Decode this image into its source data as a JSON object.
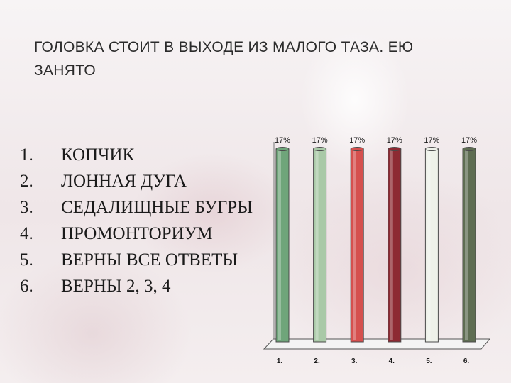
{
  "slide": {
    "title": "ГОЛОВКА СТОИТ В ВЫХОДЕ ИЗ МАЛОГО ТАЗА. ЕЮ ЗАНЯТО"
  },
  "answers": [
    {
      "num": "1.",
      "text": "КОПЧИК"
    },
    {
      "num": "2.",
      "text": "ЛОННАЯ ДУГА"
    },
    {
      "num": "3.",
      "text": "СЕДАЛИЩНЫЕ БУГРЫ"
    },
    {
      "num": "4.",
      "text": "ПРОМОНТОРИУМ"
    },
    {
      "num": "5.",
      "text": "ВЕРНЫ ВСЕ ОТВЕТЫ"
    },
    {
      "num": "6.",
      "text": "ВЕРНЫ 2, 3, 4"
    }
  ],
  "chart_data": {
    "type": "bar",
    "categories": [
      "1.",
      "2.",
      "3.",
      "4.",
      "5.",
      "6."
    ],
    "values": [
      17,
      17,
      17,
      17,
      17,
      17
    ],
    "data_labels": [
      "17%",
      "17%",
      "17%",
      "17%",
      "17%",
      "17%"
    ],
    "colors": [
      "#6fa57a",
      "#a9c9a7",
      "#d5504e",
      "#8d2a33",
      "#eef1e9",
      "#5e6d52"
    ],
    "ylim": [
      0,
      17
    ],
    "grid": false,
    "legend": "none"
  }
}
